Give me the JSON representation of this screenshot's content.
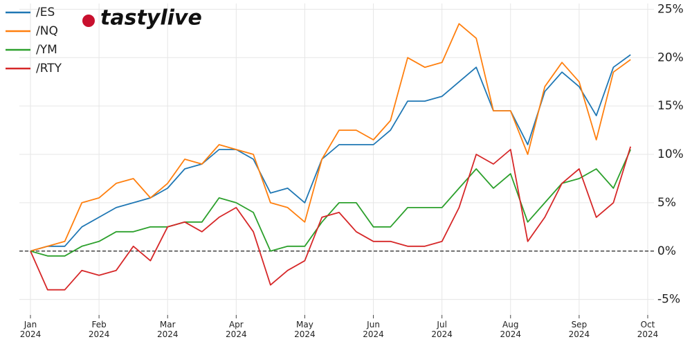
{
  "chart_data": {
    "type": "line",
    "logo": "tastylive",
    "categories": [
      "Jan 2024",
      null,
      null,
      null,
      "Feb 2024",
      null,
      null,
      null,
      "Mar 2024",
      null,
      null,
      null,
      "Apr 2024",
      null,
      null,
      null,
      "May 2024",
      null,
      null,
      null,
      "Jun 2024",
      null,
      null,
      null,
      "Jul 2024",
      null,
      null,
      null,
      "Aug 2024",
      null,
      null,
      null,
      "Sep 2024",
      null,
      null,
      null,
      "Oct 2024"
    ],
    "series": [
      {
        "name": "/ES",
        "color": "#1f77b4",
        "values": [
          0,
          0.5,
          0.5,
          2.5,
          3.5,
          4.5,
          5,
          5.5,
          6.5,
          8.5,
          9,
          10.5,
          10.5,
          9.5,
          6,
          6.5,
          5,
          9.5,
          11,
          11,
          11,
          12.5,
          15.5,
          15.5,
          16,
          17.5,
          19,
          14.5,
          14.5,
          11,
          16.5,
          18.5,
          17,
          14,
          19,
          20.3,
          null
        ]
      },
      {
        "name": "/NQ",
        "color": "#ff7f0e",
        "values": [
          0,
          0.5,
          1,
          5,
          5.5,
          7,
          7.5,
          5.5,
          7,
          9.5,
          9,
          11,
          10.5,
          10,
          5,
          4.5,
          3,
          9.5,
          12.5,
          12.5,
          11.5,
          13.5,
          20,
          19,
          19.5,
          23.5,
          22,
          14.5,
          14.5,
          10,
          17,
          19.5,
          17.5,
          11.5,
          18.5,
          19.8,
          null
        ]
      },
      {
        "name": "/YM",
        "color": "#2ca02c",
        "values": [
          0,
          -0.5,
          -0.5,
          0.5,
          1,
          2,
          2,
          2.5,
          2.5,
          3,
          3,
          5.5,
          5,
          4,
          0,
          0.5,
          0.5,
          3,
          5,
          5,
          2.5,
          2.5,
          4.5,
          4.5,
          4.5,
          6.5,
          8.5,
          6.5,
          8,
          3,
          5,
          7,
          7.5,
          8.5,
          6.5,
          10.5,
          null
        ]
      },
      {
        "name": "/RTY",
        "color": "#d62728",
        "values": [
          0,
          -4,
          -4,
          -2,
          -2.5,
          -2,
          0.5,
          -1,
          2.5,
          3,
          2,
          3.5,
          4.5,
          2,
          -3.5,
          -2,
          -1,
          3.5,
          4,
          2,
          1,
          1,
          0.5,
          0.5,
          1,
          4.5,
          10,
          9,
          10.5,
          1,
          3.5,
          7,
          8.5,
          3.5,
          5,
          10.8,
          null
        ]
      }
    ],
    "ylim": [
      -6.6,
      25.6
    ],
    "yticks": [
      {
        "value": -5,
        "label": "-5%"
      },
      {
        "value": 0,
        "label": "0%"
      },
      {
        "value": 5,
        "label": "5%"
      },
      {
        "value": 10,
        "label": "10%"
      },
      {
        "value": 15,
        "label": "15%"
      },
      {
        "value": 20,
        "label": "20%"
      },
      {
        "value": 25,
        "label": "25%"
      }
    ],
    "grid": true,
    "zero_line": true,
    "legend": "upper left"
  }
}
